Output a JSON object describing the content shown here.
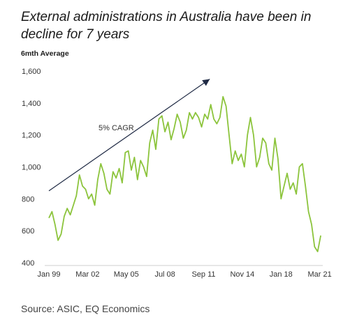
{
  "header": {
    "title": "External administrations in Australia have been in decline for 7 years",
    "ylabel": "6mth Average"
  },
  "footer": {
    "source": "Source: ASIC, EQ Economics"
  },
  "colors": {
    "line": "#8cc43c",
    "axis": "#333333",
    "arrow": "#1f2a44"
  },
  "chart_data": {
    "type": "line",
    "title": "External administrations in Australia have been in decline for 7 years",
    "ylabel": "6mth Average",
    "xlabel": "",
    "ylim": [
      400,
      1600
    ],
    "yticks": [
      400,
      600,
      800,
      1000,
      1200,
      1400,
      1600
    ],
    "ytick_labels": [
      "400",
      "600",
      "800",
      "1,000",
      "1,200",
      "1,400",
      "1,600"
    ],
    "xlim": [
      "1999-01",
      "2021-06"
    ],
    "xticks": [
      "1999-01",
      "2002-03",
      "2005-05",
      "2008-07",
      "2011-09",
      "2014-11",
      "2018-01",
      "2021-03"
    ],
    "xtick_labels": [
      "Jan 99",
      "Mar 02",
      "May 05",
      "Jul 08",
      "Sep 11",
      "Nov 14",
      "Jan 18",
      "Mar 21"
    ],
    "grid": false,
    "legend": "none",
    "annotation": {
      "text": "5% CAGR",
      "arrow_from": [
        "1999-01",
        850
      ],
      "arrow_to": [
        "2012-03",
        1550
      ]
    },
    "series": [
      {
        "x": [
          "1999-01",
          "1999-04",
          "1999-07",
          "1999-10",
          "2000-01",
          "2000-04",
          "2000-07",
          "2000-10",
          "2001-01",
          "2001-04",
          "2001-07",
          "2001-10",
          "2002-01",
          "2002-04",
          "2002-07",
          "2002-10",
          "2003-01",
          "2003-04",
          "2003-07",
          "2003-10",
          "2004-01",
          "2004-04",
          "2004-07",
          "2004-10",
          "2005-01",
          "2005-04",
          "2005-07",
          "2005-10",
          "2006-01",
          "2006-04",
          "2006-07",
          "2006-10",
          "2007-01",
          "2007-04",
          "2007-07",
          "2007-10",
          "2008-01",
          "2008-04",
          "2008-07",
          "2008-10",
          "2009-01",
          "2009-04",
          "2009-07",
          "2009-10",
          "2010-01",
          "2010-04",
          "2010-07",
          "2010-10",
          "2011-01",
          "2011-04",
          "2011-07",
          "2011-10",
          "2012-01",
          "2012-04",
          "2012-07",
          "2012-10",
          "2013-01",
          "2013-04",
          "2013-07",
          "2013-10",
          "2014-01",
          "2014-04",
          "2014-07",
          "2014-10",
          "2015-01",
          "2015-04",
          "2015-07",
          "2015-10",
          "2016-01",
          "2016-04",
          "2016-07",
          "2016-10",
          "2017-01",
          "2017-04",
          "2017-07",
          "2017-10",
          "2018-01",
          "2018-04",
          "2018-07",
          "2018-10",
          "2019-01",
          "2019-04",
          "2019-07",
          "2019-10",
          "2020-01",
          "2020-04",
          "2020-07",
          "2020-10",
          "2021-01",
          "2021-04"
        ],
        "values": [
          680,
          720,
          640,
          540,
          580,
          690,
          740,
          700,
          760,
          820,
          950,
          880,
          860,
          800,
          830,
          760,
          920,
          1020,
          960,
          860,
          830,
          970,
          930,
          990,
          900,
          1090,
          1100,
          980,
          1060,
          920,
          1040,
          1000,
          940,
          1150,
          1230,
          1110,
          1300,
          1320,
          1220,
          1280,
          1170,
          1240,
          1330,
          1280,
          1180,
          1230,
          1340,
          1300,
          1340,
          1310,
          1250,
          1330,
          1300,
          1390,
          1300,
          1270,
          1310,
          1440,
          1380,
          1200,
          1020,
          1100,
          1040,
          1080,
          1000,
          1200,
          1310,
          1200,
          1000,
          1060,
          1180,
          1150,
          1020,
          980,
          1180,
          1050,
          800,
          880,
          960,
          860,
          900,
          830,
          1000,
          1020,
          880,
          720,
          640,
          500,
          470,
          570
        ]
      }
    ]
  }
}
